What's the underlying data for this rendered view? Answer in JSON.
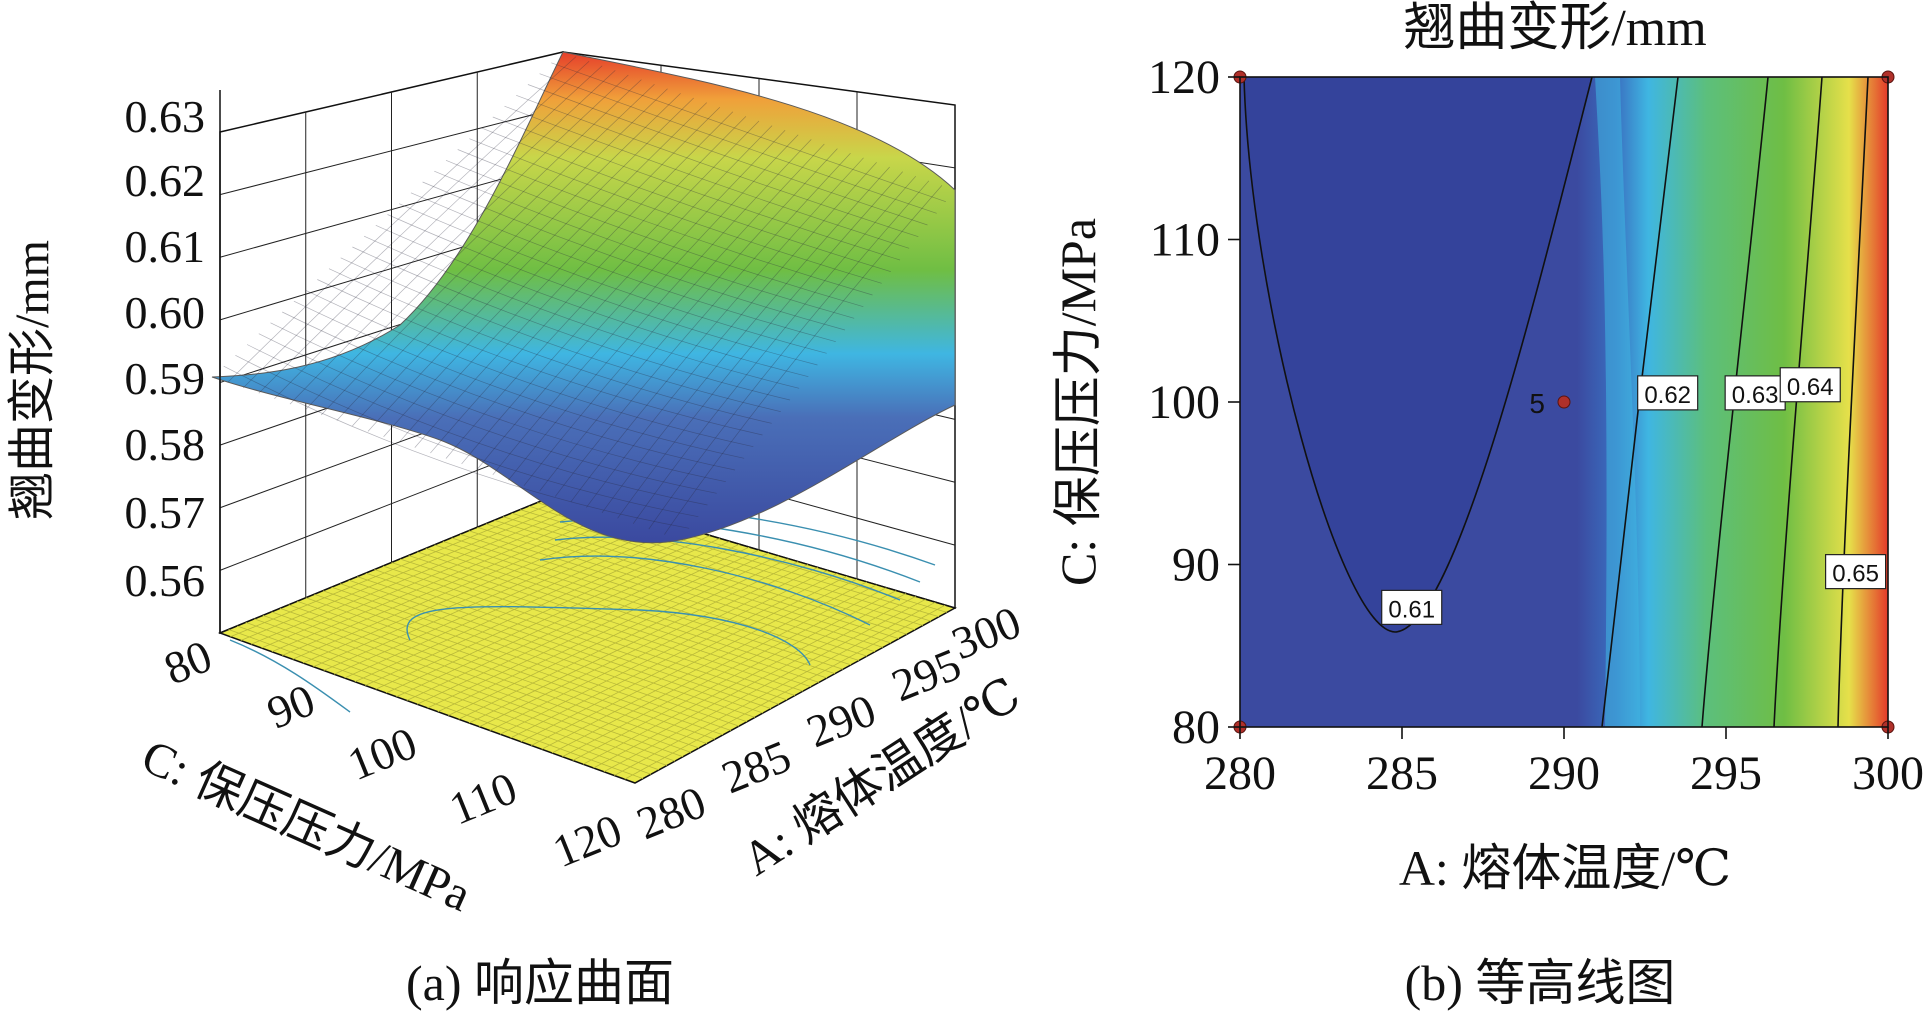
{
  "chart_data": [
    {
      "type": "surface3d",
      "caption": "(a) 响应曲面",
      "zlabel": "翘曲变形/mm",
      "xlabel": "C: 保压压力/MPa",
      "ylabel": "A: 熔体温度/℃",
      "z_ticks": [
        "0.63",
        "0.62",
        "0.61",
        "0.60",
        "0.59",
        "0.58",
        "0.57",
        "0.56"
      ],
      "x_ticks": [
        "80",
        "90",
        "100",
        "110",
        "120"
      ],
      "y_ticks": [
        "280",
        "285",
        "290",
        "295",
        "300"
      ],
      "xlim": [
        80,
        120
      ],
      "ylim": [
        280,
        300
      ],
      "zlim": [
        0.56,
        0.63
      ],
      "grid": true,
      "colors": {
        "low": "#3b4aa0",
        "mid_low": "#3fb6e2",
        "mid": "#6fbe44",
        "mid_high": "#e6e04a",
        "high": "#e53a2a",
        "floor": "#e8e84a"
      }
    },
    {
      "type": "contour",
      "caption": "(b) 等高线图",
      "title": "翘曲变形/mm",
      "xlabel": "A: 熔体温度/℃",
      "ylabel": "C: 保压压力/MPa",
      "x_ticks": [
        "280",
        "285",
        "290",
        "295",
        "300"
      ],
      "y_ticks": [
        "80",
        "90",
        "100",
        "110",
        "120"
      ],
      "xlim": [
        280,
        300
      ],
      "ylim": [
        80,
        120
      ],
      "contour_levels": [
        {
          "value": 0.61,
          "label": "0.61",
          "label_x": 285.3,
          "label_y": 87.3
        },
        {
          "value": 0.62,
          "label": "0.62",
          "label_x": 293.2,
          "label_y": 100.5
        },
        {
          "value": 0.63,
          "label": "0.63",
          "label_x": 295.9,
          "label_y": 100.5
        },
        {
          "value": 0.64,
          "label": "0.64",
          "label_x": 297.6,
          "label_y": 101.0
        },
        {
          "value": 0.65,
          "label": "0.65",
          "label_x": 299.0,
          "label_y": 89.5
        }
      ],
      "design_points": [
        {
          "x": 280,
          "y": 80
        },
        {
          "x": 280,
          "y": 120
        },
        {
          "x": 300,
          "y": 80
        },
        {
          "x": 300,
          "y": 120
        },
        {
          "x": 290,
          "y": 100
        }
      ],
      "center_point_label": "5",
      "colors": {
        "low": "#3b4aa0",
        "mid_low": "#3fb6e2",
        "mid": "#6fbe44",
        "mid_high": "#e6e04a",
        "high": "#e53a2a",
        "point": "#b0302a"
      }
    }
  ]
}
